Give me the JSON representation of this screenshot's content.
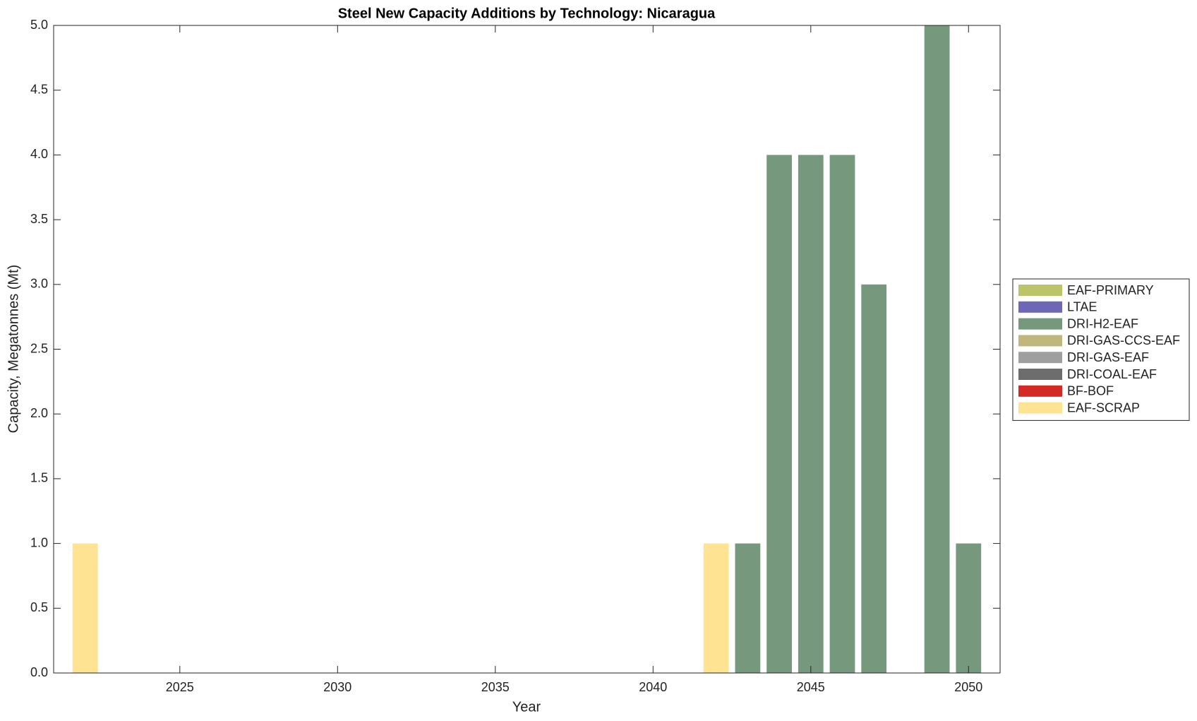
{
  "chart_data": {
    "type": "bar",
    "stacked": true,
    "title": "Steel New Capacity Additions by Technology: Nicaragua",
    "x_label": "Year",
    "y_label": "Capacity, Megatonnes (Mt)",
    "x": [
      2022,
      2023,
      2024,
      2025,
      2026,
      2027,
      2028,
      2029,
      2030,
      2031,
      2032,
      2033,
      2034,
      2035,
      2036,
      2037,
      2038,
      2039,
      2040,
      2041,
      2042,
      2043,
      2044,
      2045,
      2046,
      2047,
      2048,
      2049,
      2050
    ],
    "series": [
      {
        "name": "EAF-PRIMARY",
        "color": "#bcc46a",
        "values": [
          0,
          0,
          0,
          0,
          0,
          0,
          0,
          0,
          0,
          0,
          0,
          0,
          0,
          0,
          0,
          0,
          0,
          0,
          0,
          0,
          0,
          0,
          0,
          0,
          0,
          0,
          0,
          0,
          0
        ]
      },
      {
        "name": "LTAE",
        "color": "#6e67b6",
        "values": [
          0,
          0,
          0,
          0,
          0,
          0,
          0,
          0,
          0,
          0,
          0,
          0,
          0,
          0,
          0,
          0,
          0,
          0,
          0,
          0,
          0,
          0,
          0,
          0,
          0,
          0,
          0,
          0,
          0
        ]
      },
      {
        "name": "DRI-H2-EAF",
        "color": "#76987c",
        "values": [
          0,
          0,
          0,
          0,
          0,
          0,
          0,
          0,
          0,
          0,
          0,
          0,
          0,
          0,
          0,
          0,
          0,
          0,
          0,
          0,
          0,
          1,
          4,
          4,
          4,
          3,
          0,
          5,
          1
        ]
      },
      {
        "name": "DRI-GAS-CCS-EAF",
        "color": "#c0b77d",
        "values": [
          0,
          0,
          0,
          0,
          0,
          0,
          0,
          0,
          0,
          0,
          0,
          0,
          0,
          0,
          0,
          0,
          0,
          0,
          0,
          0,
          0,
          0,
          0,
          0,
          0,
          0,
          0,
          0,
          0
        ]
      },
      {
        "name": "DRI-GAS-EAF",
        "color": "#9f9f9f",
        "values": [
          0,
          0,
          0,
          0,
          0,
          0,
          0,
          0,
          0,
          0,
          0,
          0,
          0,
          0,
          0,
          0,
          0,
          0,
          0,
          0,
          0,
          0,
          0,
          0,
          0,
          0,
          0,
          0,
          0
        ]
      },
      {
        "name": "DRI-COAL-EAF",
        "color": "#6d6d6d",
        "values": [
          0,
          0,
          0,
          0,
          0,
          0,
          0,
          0,
          0,
          0,
          0,
          0,
          0,
          0,
          0,
          0,
          0,
          0,
          0,
          0,
          0,
          0,
          0,
          0,
          0,
          0,
          0,
          0,
          0
        ]
      },
      {
        "name": "BF-BOF",
        "color": "#d42a26",
        "values": [
          0,
          0,
          0,
          0,
          0,
          0,
          0,
          0,
          0,
          0,
          0,
          0,
          0,
          0,
          0,
          0,
          0,
          0,
          0,
          0,
          0,
          0,
          0,
          0,
          0,
          0,
          0,
          0,
          0
        ]
      },
      {
        "name": "EAF-SCRAP",
        "color": "#fde392",
        "values": [
          1,
          0,
          0,
          0,
          0,
          0,
          0,
          0,
          0,
          0,
          0,
          0,
          0,
          0,
          0,
          0,
          0,
          0,
          0,
          0,
          1,
          0,
          0,
          0,
          0,
          0,
          0,
          0,
          0
        ]
      }
    ],
    "xlim": [
      2021,
      2051
    ],
    "xticks": [
      2025,
      2030,
      2035,
      2040,
      2045,
      2050
    ],
    "ylim": [
      0,
      5
    ],
    "yticks": [
      {
        "value": 0,
        "label": "0.0"
      },
      0.5,
      {
        "value": 1,
        "label": "1.0"
      },
      1.5,
      {
        "value": 2,
        "label": "2.0"
      },
      2.5,
      {
        "value": 3,
        "label": "3.0"
      },
      3.5,
      {
        "value": 4,
        "label": "4.0"
      },
      4.5,
      {
        "value": 5,
        "label": "5.0"
      }
    ],
    "grid": false,
    "legend": "right"
  }
}
